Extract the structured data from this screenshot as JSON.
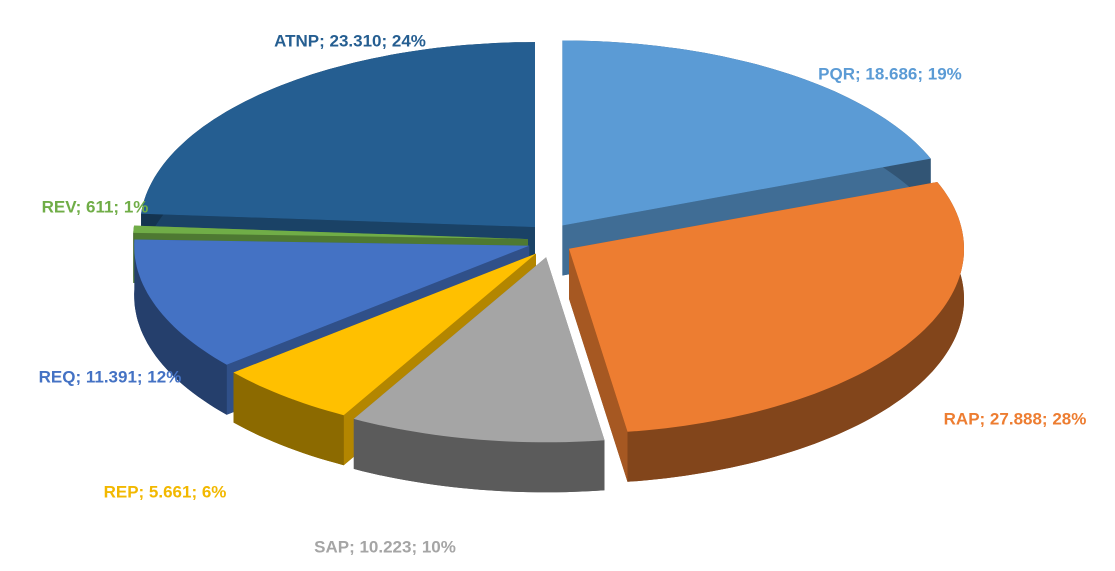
{
  "chart_data": {
    "type": "pie",
    "values": [
      18686,
      27888,
      10223,
      5661,
      11391,
      611,
      23310
    ],
    "value_labels": [
      "PQR; 18.686; 19%",
      "RAP; 27.888; 28%",
      "SAP; 10.223; 10%",
      "REP; 5.661; 6%",
      "REQ; 11.391; 12%",
      "REV; 611; 1%",
      "ATNP; 23.310; 24%"
    ],
    "colors": [
      "#5b9bd5",
      "#ed7d31",
      "#a5a5a5",
      "#ffc000",
      "#4472c4",
      "#70ad47",
      "#255e91"
    ]
  }
}
